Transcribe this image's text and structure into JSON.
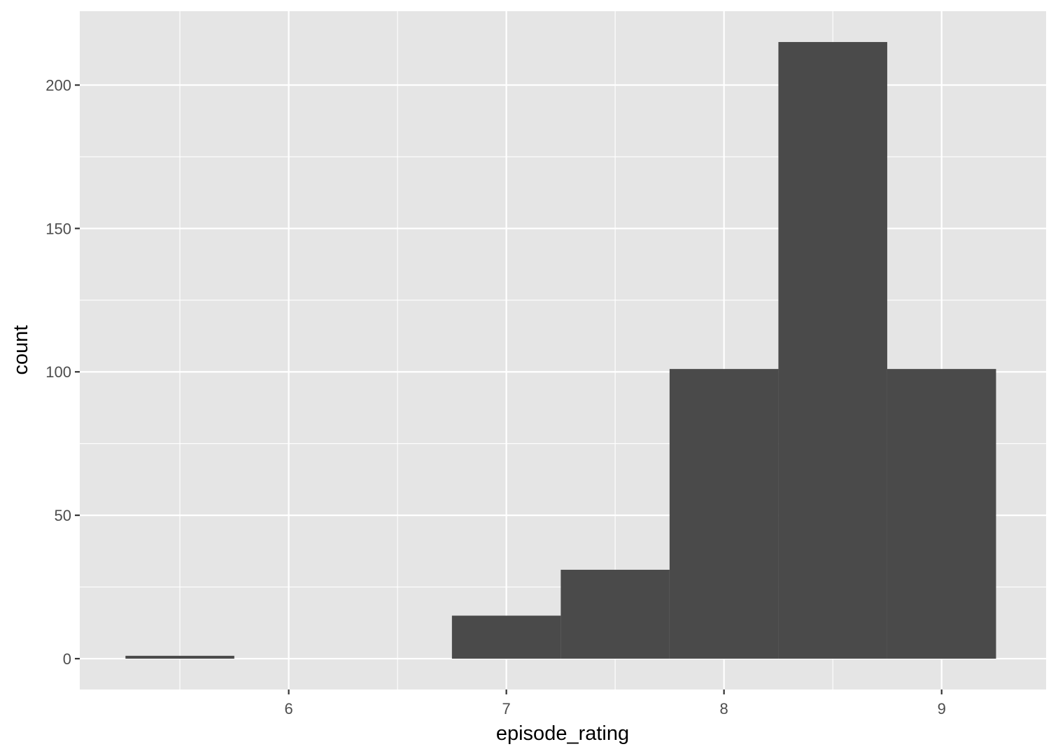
{
  "chart_data": {
    "type": "bar",
    "subtype": "histogram",
    "xlabel": "episode_rating",
    "ylabel": "count",
    "bin_width": 0.5,
    "bins": [
      {
        "x0": 5.25,
        "x1": 5.75,
        "count": 1
      },
      {
        "x0": 5.75,
        "x1": 6.25,
        "count": 0
      },
      {
        "x0": 6.25,
        "x1": 6.75,
        "count": 0
      },
      {
        "x0": 6.75,
        "x1": 7.25,
        "count": 15
      },
      {
        "x0": 7.25,
        "x1": 7.75,
        "count": 31
      },
      {
        "x0": 7.75,
        "x1": 8.25,
        "count": 101
      },
      {
        "x0": 8.25,
        "x1": 8.75,
        "count": 215
      },
      {
        "x0": 8.75,
        "x1": 9.25,
        "count": 101
      }
    ],
    "xlim": [
      5.04,
      9.48
    ],
    "ylim": [
      -10.75,
      225.75
    ],
    "x_ticks": [
      6,
      7,
      8,
      9
    ],
    "x_minor": [
      5.5,
      6.5,
      7.5,
      8.5
    ],
    "y_ticks": [
      0,
      50,
      100,
      150,
      200
    ],
    "y_minor": [
      25,
      75,
      125,
      175
    ],
    "grid": true,
    "legend": "none",
    "colors": {
      "panel_bg": "#e5e5e5",
      "grid": "#ffffff",
      "bar_fill": "#4a4a4a",
      "tick_text": "#4d4d4d",
      "axis_title": "#000000"
    }
  }
}
